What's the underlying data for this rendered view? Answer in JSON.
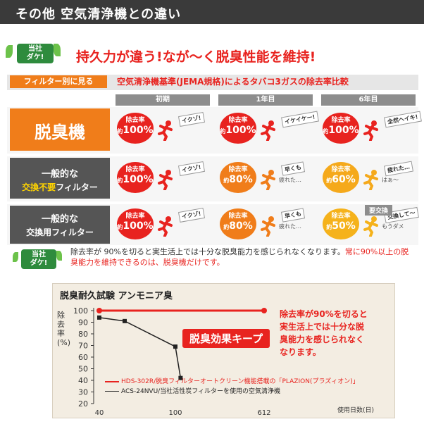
{
  "header": {
    "title": "その他 空気清浄機との違い"
  },
  "badge": {
    "line1": "当社",
    "line2": "ダケ!"
  },
  "headline": "持久力が違う!なが〜く脱臭性能を維持!",
  "filter_tag": "フィルター別に見る",
  "subhead": "空気清浄機基準(JEMA規格)によるタバコ3ガスの除去率比較",
  "columns": [
    "初期",
    "1年目",
    "6年目"
  ],
  "rows": [
    {
      "label1": "脱臭機",
      "label2": "",
      "color": "#f07d1a",
      "cells": [
        {
          "a": "除去率",
          "b": "100%",
          "speech": "イクゾ!",
          "speech2": ""
        },
        {
          "a": "除去率",
          "b": "100%",
          "speech": "イケイケー!",
          "speech2": ""
        },
        {
          "a": "除去率",
          "b": "100%",
          "speech": "全然ヘイキ!",
          "speech2": ""
        }
      ]
    },
    {
      "label1": "一般的な",
      "label2a": "交換不要",
      "label2b": "フィルター",
      "color": "#555555",
      "cells": [
        {
          "a": "除去率",
          "b": "100%",
          "speech": "イクゾ!",
          "speech2": ""
        },
        {
          "a": "除去率",
          "b": "80%",
          "speech": "早くも",
          "speech2": "疲れた…"
        },
        {
          "a": "除去率",
          "b": "60%",
          "speech": "疲れた…",
          "speech2": "はぁ〜"
        }
      ]
    },
    {
      "label1": "一般的な",
      "label2": "交換用フィルター",
      "color": "#555555",
      "cells": [
        {
          "a": "除去率",
          "b": "100%",
          "speech": "イクゾ!",
          "speech2": ""
        },
        {
          "a": "除去率",
          "b": "80%",
          "speech": "早くも",
          "speech2": "疲れた…"
        },
        {
          "a": "除去率",
          "b": "50%",
          "speech": "交換して〜",
          "speech2": "もうダメ"
        }
      ]
    }
  ],
  "exchange_tag": "要交換",
  "prefix": "約",
  "note": {
    "black": "除去率が 90%を切ると実生活上では十分な脱臭能力を感じられなくなります。",
    "red": "常に90%以上の脱臭能力を維持できるのは、脱臭機だけです。"
  },
  "chart_data": {
    "type": "line",
    "title": "脱臭耐久試験 アンモニア臭",
    "ylabel": "除去率(%)",
    "xlabel": "使用日数(日)",
    "x_ticks": [
      40,
      100,
      612
    ],
    "y_ticks": [
      100,
      90,
      80,
      70,
      60,
      50,
      40,
      30,
      20
    ],
    "ylim": [
      20,
      100
    ],
    "series": [
      {
        "name": "HDS-302R/脱臭フィルターオートクリーン機能搭載の「PLAZION(プラズィオン)」",
        "color": "#e8231f",
        "x": [
          40,
          612
        ],
        "y": [
          100,
          100
        ]
      },
      {
        "name": "ACS-24NVU/当社活性炭フィルターを使用の空気清浄機",
        "color": "#222222",
        "x": [
          40,
          60,
          100,
          130
        ],
        "y": [
          94,
          91,
          69,
          42
        ]
      }
    ],
    "callout": "脱臭効果キープ",
    "annotation": "除去率が90%を切ると実生活上では十分な脱臭能力を感じられなくなります。"
  },
  "colors": {
    "orange": "#f07d1a",
    "red": "#e8231f",
    "green": "#2e8b3d"
  }
}
